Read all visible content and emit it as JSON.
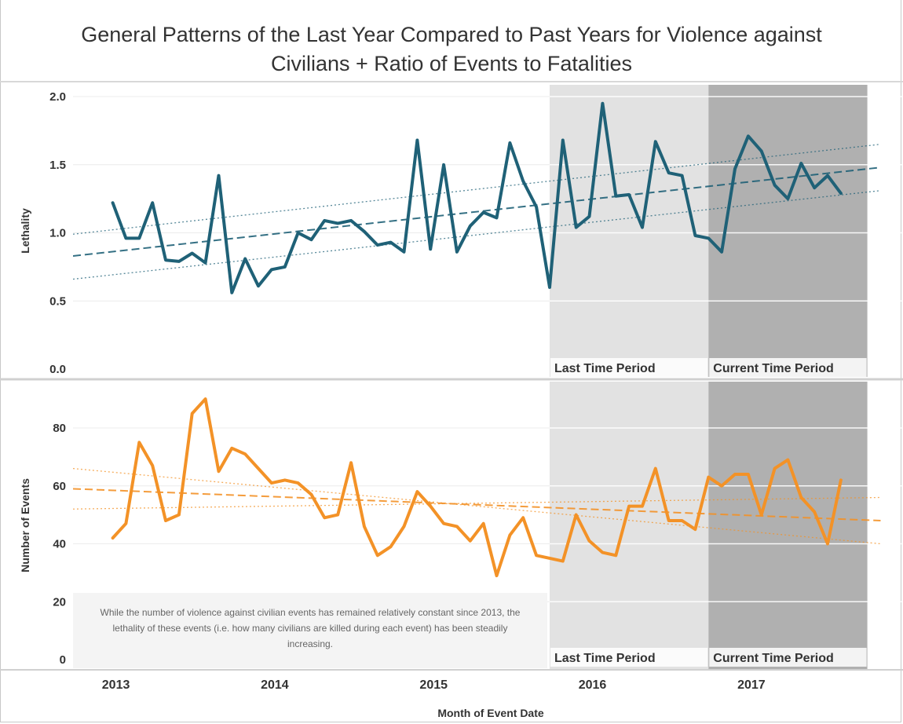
{
  "title_line1": "General Patterns of the Last Year Compared to Past Years for Violence against",
  "title_line2": "Civilians + Ratio of Events to Fatalities",
  "note": "While the number of violence against civilian events has remained relatively constant since 2013, the lethality of these events (i.e. how many civilians are killed during each event) has been steadily increasing.",
  "colors": {
    "lethality": "#1f6177",
    "events": "#f39227",
    "last_period": "#e2e2e2",
    "current_period": "#b0b0b0"
  },
  "chart_data": [
    {
      "type": "line",
      "ylabel": "Lethality",
      "ylim": [
        0.0,
        2.05
      ],
      "yticks": [
        {
          "value": 0.0,
          "label": "0.0"
        },
        {
          "value": 0.5,
          "label": "0.5"
        },
        {
          "value": 1.0,
          "label": "1.0"
        },
        {
          "value": 1.5,
          "label": "1.5"
        },
        {
          "value": 2.0,
          "label": "2.0"
        }
      ],
      "series": [
        {
          "x": [
            "2013-01",
            "2013-02",
            "2013-03",
            "2013-04",
            "2013-05",
            "2013-06",
            "2013-07",
            "2013-08",
            "2013-09",
            "2013-10",
            "2013-11",
            "2013-12",
            "2014-01",
            "2014-02",
            "2014-03",
            "2014-04",
            "2014-05",
            "2014-06",
            "2014-07",
            "2014-08",
            "2014-09",
            "2014-10",
            "2014-11",
            "2014-12",
            "2015-01",
            "2015-02",
            "2015-03",
            "2015-04",
            "2015-05",
            "2015-06",
            "2015-07",
            "2015-08",
            "2015-09",
            "2015-10",
            "2015-11",
            "2015-12",
            "2016-01",
            "2016-02",
            "2016-03",
            "2016-04",
            "2016-05",
            "2016-06",
            "2016-07",
            "2016-08",
            "2016-09",
            "2016-10",
            "2016-11",
            "2016-12",
            "2017-01",
            "2017-02",
            "2017-03",
            "2017-04",
            "2017-05",
            "2017-06",
            "2017-07",
            "2017-08"
          ],
          "values": [
            1.22,
            0.96,
            0.96,
            1.22,
            0.8,
            0.79,
            0.85,
            0.78,
            1.42,
            0.56,
            0.81,
            0.61,
            0.73,
            0.75,
            1.0,
            0.95,
            1.09,
            1.07,
            1.09,
            1.01,
            0.91,
            0.93,
            0.86,
            1.68,
            0.88,
            1.5,
            0.86,
            1.05,
            1.15,
            1.11,
            1.66,
            1.38,
            1.19,
            0.6,
            1.68,
            1.04,
            1.12,
            1.95,
            1.27,
            1.28,
            1.04,
            1.67,
            1.44,
            1.42,
            0.98,
            0.96,
            0.86,
            1.47,
            1.71,
            1.6,
            1.35,
            1.25,
            1.51,
            1.33,
            1.42,
            1.29
          ]
        }
      ],
      "trend": {
        "start": [
          "2012-10",
          0.83
        ],
        "end": [
          "2017-11",
          1.48
        ]
      },
      "confidence": {
        "upper": {
          "start": [
            "2012-10",
            0.99
          ],
          "end": [
            "2017-11",
            1.65
          ]
        },
        "lower": {
          "start": [
            "2012-10",
            0.66
          ],
          "end": [
            "2017-11",
            1.31
          ]
        }
      }
    },
    {
      "type": "line",
      "ylabel": "Number of Events",
      "xlabel": "Month of Event Date",
      "ylim": [
        0,
        95
      ],
      "yticks": [
        {
          "value": 0,
          "label": "0"
        },
        {
          "value": 20,
          "label": "20"
        },
        {
          "value": 40,
          "label": "40"
        },
        {
          "value": 60,
          "label": "60"
        },
        {
          "value": 80,
          "label": "80"
        }
      ],
      "xticks": [
        {
          "value": "2013-01",
          "label": "2013"
        },
        {
          "value": "2014-01",
          "label": "2014"
        },
        {
          "value": "2015-01",
          "label": "2015"
        },
        {
          "value": "2016-01",
          "label": "2016"
        },
        {
          "value": "2017-01",
          "label": "2017"
        }
      ],
      "series": [
        {
          "x": [
            "2013-01",
            "2013-02",
            "2013-03",
            "2013-04",
            "2013-05",
            "2013-06",
            "2013-07",
            "2013-08",
            "2013-09",
            "2013-10",
            "2013-11",
            "2013-12",
            "2014-01",
            "2014-02",
            "2014-03",
            "2014-04",
            "2014-05",
            "2014-06",
            "2014-07",
            "2014-08",
            "2014-09",
            "2014-10",
            "2014-11",
            "2014-12",
            "2015-01",
            "2015-02",
            "2015-03",
            "2015-04",
            "2015-05",
            "2015-06",
            "2015-07",
            "2015-08",
            "2015-09",
            "2015-10",
            "2015-11",
            "2015-12",
            "2016-01",
            "2016-02",
            "2016-03",
            "2016-04",
            "2016-05",
            "2016-06",
            "2016-07",
            "2016-08",
            "2016-09",
            "2016-10",
            "2016-11",
            "2016-12",
            "2017-01",
            "2017-02",
            "2017-03",
            "2017-04",
            "2017-05",
            "2017-06",
            "2017-07",
            "2017-08"
          ],
          "values": [
            42,
            47,
            75,
            67,
            48,
            50,
            85,
            90,
            65,
            73,
            71,
            66,
            61,
            62,
            61,
            57,
            49,
            50,
            68,
            46,
            36,
            39,
            46,
            58,
            53,
            47,
            46,
            41,
            47,
            29,
            43,
            49,
            36,
            35,
            34,
            50,
            41,
            37,
            36,
            53,
            53,
            66,
            48,
            48,
            45,
            63,
            60,
            64,
            64,
            50,
            66,
            69,
            56,
            51,
            40,
            62
          ]
        }
      ],
      "trend": {
        "start": [
          "2012-10",
          59
        ],
        "end": [
          "2017-11",
          48
        ]
      },
      "confidence": {
        "upper": {
          "start": [
            "2012-10",
            66
          ],
          "end": [
            "2017-11",
            40
          ]
        },
        "lower": {
          "start": [
            "2012-10",
            52
          ],
          "end": [
            "2017-11",
            56
          ]
        }
      }
    }
  ],
  "periods": [
    {
      "label": "Last Time Period",
      "start": "2015-10",
      "end": "2016-10"
    },
    {
      "label": "Current Time Period",
      "start": "2016-10",
      "end": "2017-10"
    }
  ]
}
